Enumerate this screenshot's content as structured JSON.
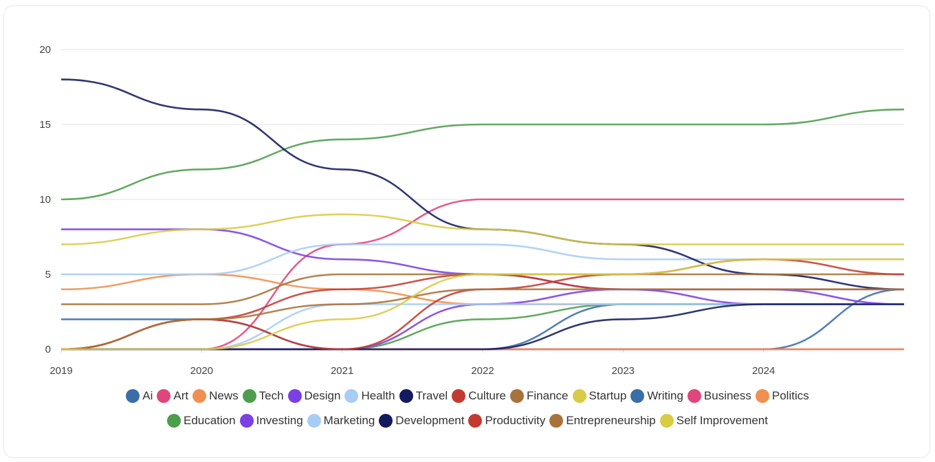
{
  "chart_data": {
    "type": "line",
    "title": "",
    "xlabel": "",
    "ylabel": "",
    "x": [
      2019,
      2020,
      2021,
      2022,
      2023,
      2024,
      2025
    ],
    "xticks": [
      "2019",
      "2020",
      "2021",
      "2022",
      "2023",
      "2024"
    ],
    "yticks": [
      "0",
      "5",
      "10",
      "15",
      "20"
    ],
    "xlim": [
      2019,
      2025
    ],
    "ylim": [
      0,
      20
    ],
    "grid": true,
    "legend_position": "bottom",
    "series": [
      {
        "name": "Ai",
        "color": "#3a6ea8",
        "values": [
          2,
          2,
          0,
          0,
          0,
          0,
          4
        ]
      },
      {
        "name": "Art",
        "color": "#e0457b",
        "values": [
          0,
          0,
          7,
          10,
          10,
          10,
          10
        ]
      },
      {
        "name": "News",
        "color": "#ef8f50",
        "values": [
          4,
          5,
          4,
          3,
          3,
          3,
          3
        ]
      },
      {
        "name": "Tech",
        "color": "#4c9e4c",
        "values": [
          10,
          12,
          14,
          15,
          15,
          15,
          16
        ]
      },
      {
        "name": "Design",
        "color": "#7b3fe4",
        "values": [
          8,
          8,
          6,
          5,
          4,
          4,
          3
        ]
      },
      {
        "name": "Health",
        "color": "#a7cdf5",
        "values": [
          5,
          5,
          7,
          7,
          6,
          6,
          6
        ]
      },
      {
        "name": "Travel",
        "color": "#131a5e",
        "values": [
          18,
          16,
          12,
          8,
          7,
          5,
          4
        ]
      },
      {
        "name": "Culture",
        "color": "#c23b32",
        "values": [
          0,
          2,
          4,
          5,
          4,
          4,
          4
        ]
      },
      {
        "name": "Finance",
        "color": "#a8733a",
        "values": [
          3,
          3,
          5,
          5,
          5,
          5,
          5
        ]
      },
      {
        "name": "Startup",
        "color": "#d9cb45",
        "values": [
          7,
          8,
          9,
          8,
          7,
          7,
          7
        ]
      },
      {
        "name": "Writing",
        "color": "#3a6ea8",
        "values": [
          0,
          0,
          0,
          0,
          3,
          3,
          3
        ]
      },
      {
        "name": "Business",
        "color": "#e0457b",
        "values": [
          0,
          0,
          0,
          0,
          0,
          0,
          0
        ]
      },
      {
        "name": "Politics",
        "color": "#ef8f50",
        "values": [
          0,
          0,
          0,
          0,
          0,
          0,
          0
        ]
      },
      {
        "name": "Education",
        "color": "#4c9e4c",
        "values": [
          0,
          0,
          0,
          2,
          3,
          3,
          3
        ]
      },
      {
        "name": "Investing",
        "color": "#7b3fe4",
        "values": [
          0,
          0,
          0,
          3,
          4,
          3,
          3
        ]
      },
      {
        "name": "Marketing",
        "color": "#a7cdf5",
        "values": [
          0,
          0,
          3,
          3,
          3,
          3,
          3
        ]
      },
      {
        "name": "Development",
        "color": "#131a5e",
        "values": [
          0,
          0,
          0,
          0,
          2,
          3,
          3
        ]
      },
      {
        "name": "Productivity",
        "color": "#c23b32",
        "values": [
          0,
          2,
          0,
          4,
          5,
          6,
          5
        ]
      },
      {
        "name": "Entrepreneurship",
        "color": "#a8733a",
        "values": [
          0,
          2,
          3,
          4,
          4,
          4,
          4
        ]
      },
      {
        "name": "Self Improvement",
        "color": "#d9cb45",
        "values": [
          0,
          0,
          2,
          5,
          5,
          6,
          6
        ]
      }
    ]
  },
  "legend_rows": [
    [
      "Ai",
      "Art",
      "News",
      "Tech",
      "Design",
      "Health",
      "Travel",
      "Culture",
      "Finance",
      "Startup",
      "Writing",
      "Business",
      "Politics"
    ],
    [
      "Education",
      "Investing",
      "Marketing",
      "Development",
      "Productivity",
      "Entrepreneurship",
      "Self Improvement"
    ]
  ]
}
